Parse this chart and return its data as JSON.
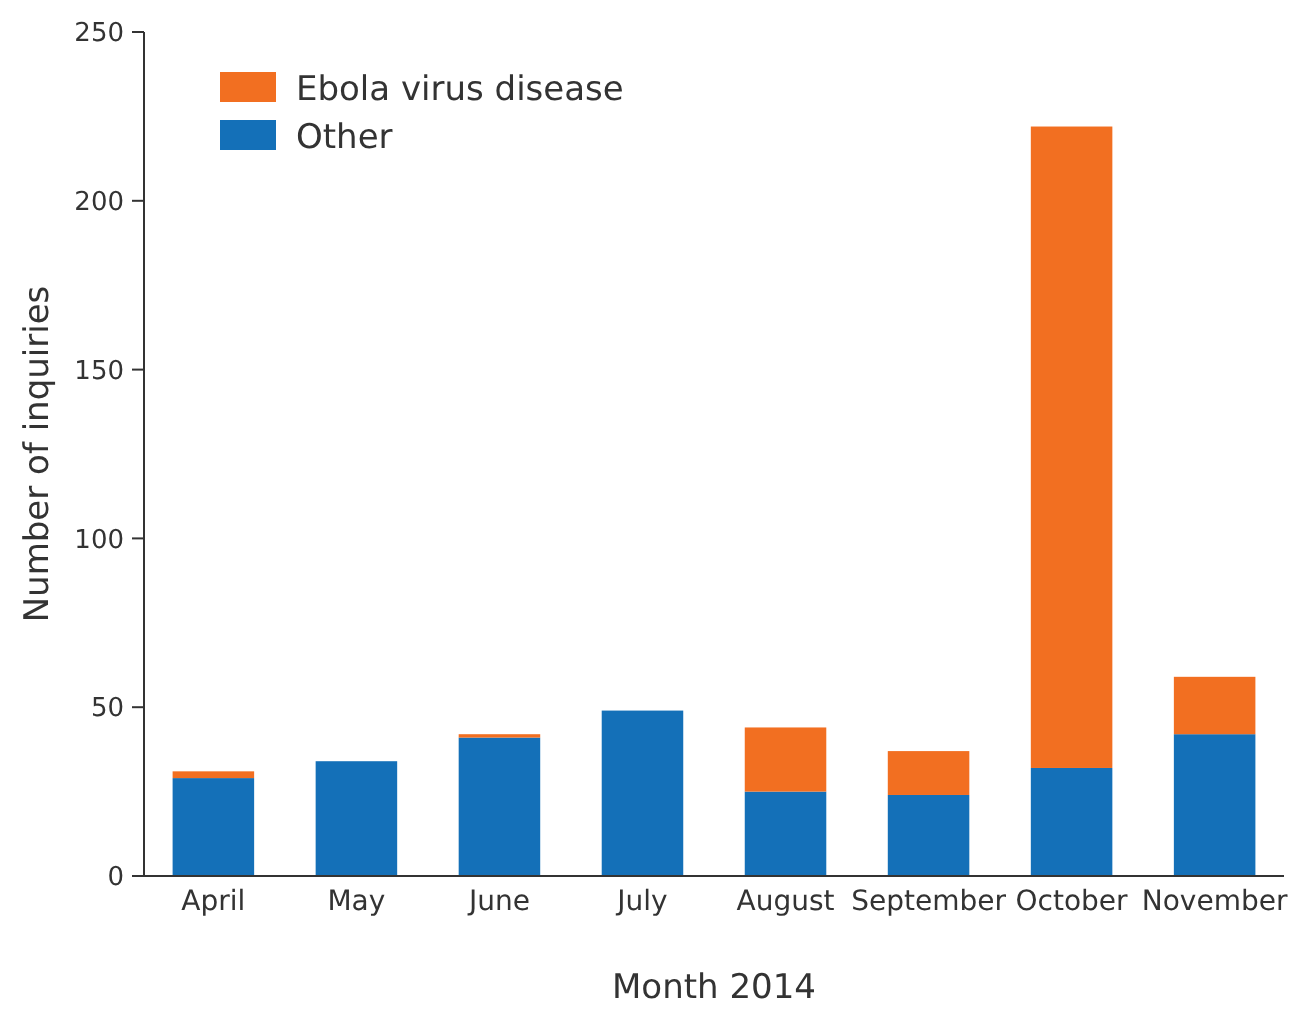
{
  "chart_data": {
    "type": "bar",
    "stacked": true,
    "xlabel": "Month 2014",
    "ylabel": "Number of inquiries",
    "categories": [
      "April",
      "May",
      "June",
      "July",
      "August",
      "September",
      "October",
      "November"
    ],
    "series": [
      {
        "name": "Other",
        "color": "#1470b8",
        "values": [
          29,
          34,
          41,
          49,
          25,
          24,
          32,
          42
        ]
      },
      {
        "name": "Ebola virus disease",
        "color": "#f26f21",
        "values": [
          2,
          0,
          1,
          0,
          19,
          13,
          190,
          17
        ]
      }
    ],
    "ylim": [
      0,
      250
    ],
    "yticks": [
      0,
      50,
      100,
      150,
      200,
      250
    ],
    "grid": false,
    "legend": "top left"
  }
}
